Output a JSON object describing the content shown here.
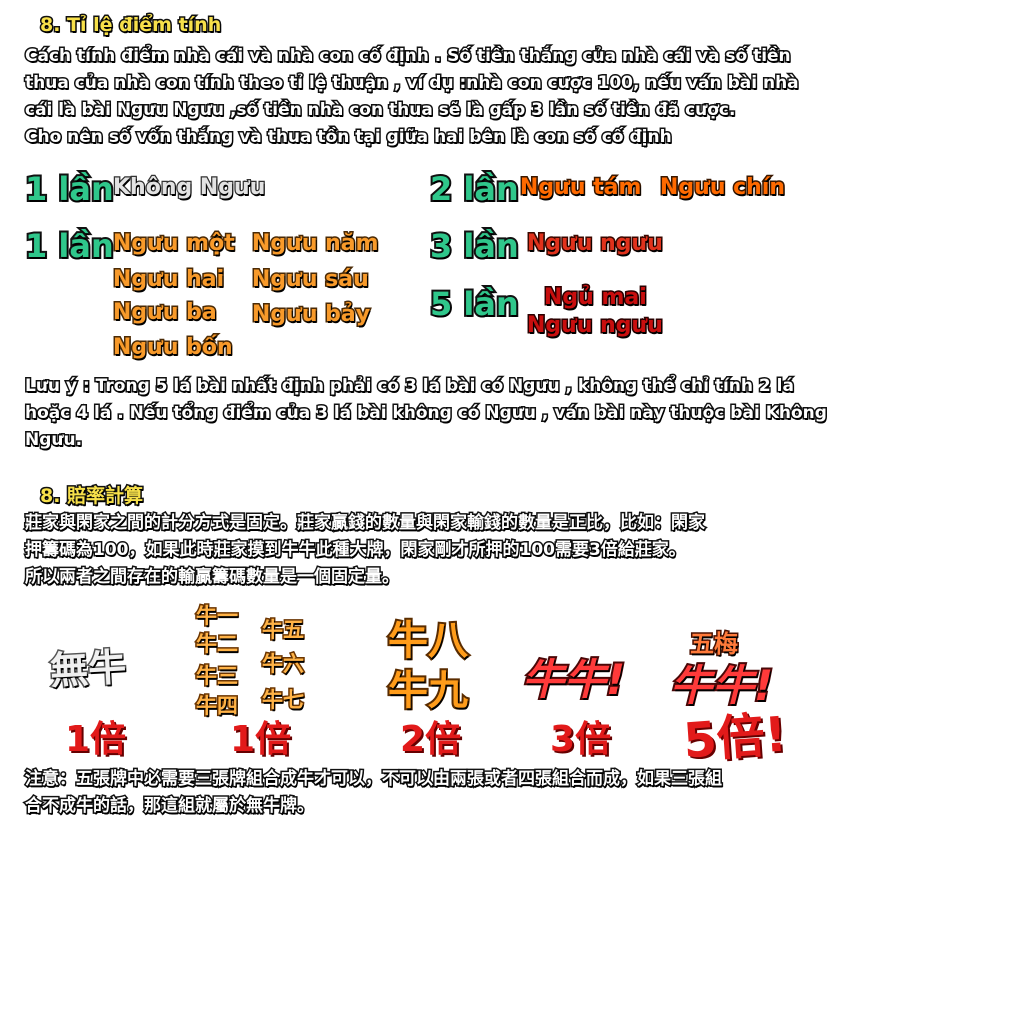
{
  "vi": {
    "title": "8. Tỉ lệ điểm tính",
    "para": [
      "Cách tính điểm nhà cái và nhà con cố định . Số tiền thắng của nhà cái và số tiền",
      "thua của nhà con tính theo tỉ lệ thuận  , ví dụ :nhà con cược 100, nếu ván bài nhà",
      "cái là bài Ngưu Ngưu ,số tiền nhà con thua sẽ là gấp 3 lần số tiền đã cược.",
      "Cho nên số vốn thắng và thua tồn tại giữa hai bên là con số cố định"
    ],
    "rows": {
      "r1_mult": "1 lần",
      "r1_item": "Không Ngưu",
      "r2_mult": "2 lần",
      "r2_items": [
        "Ngưu tám",
        "Ngưu chín"
      ],
      "r3_mult": "1 lần",
      "r3_items_a": [
        "Ngưu một",
        "Ngưu hai",
        "Ngưu ba",
        "Ngưu bốn"
      ],
      "r3_items_b": [
        "Ngưu năm",
        "Ngưu sáu",
        "Ngưu bảy"
      ],
      "r4_mult": "3 lần",
      "r4_item": "Ngưu ngưu",
      "r5_mult": "5 lần",
      "r5_items": [
        "Ngủ mai",
        "Ngưu ngưu"
      ]
    },
    "note": [
      "Lưu ý : Trong 5 lá bài nhất định phải có 3 lá bài có Ngưu , không thể chỉ tính 2 lá",
      "hoặc 4 lá . Nếu tổng điểm của 3 lá bài không có Ngưu , ván bài này thuộc bài Không",
      "Ngưu."
    ]
  },
  "zh": {
    "title": "8. 賠率計算",
    "para": [
      "莊家與閑家之間的計分方式是固定。莊家贏錢的數量與閑家輸錢的數量是正比，比如：閑家",
      "押籌碼為100，如果此時莊家摸到牛牛此種大牌，閑家剛才所押的100需要3倍給莊家。",
      "所以兩者之間存在的輸贏籌碼數量是一個固定量。"
    ],
    "cols": [
      {
        "labels": [
          "無牛"
        ],
        "mult": "1倍"
      },
      {
        "labels_a": [
          "牛一",
          "牛二",
          "牛三",
          "牛四"
        ],
        "labels_b": [
          "牛五",
          "牛六",
          "牛七"
        ],
        "mult": "1倍"
      },
      {
        "labels": [
          "牛八",
          "牛九"
        ],
        "mult": "2倍"
      },
      {
        "labels": [
          "牛牛!"
        ],
        "mult": "3倍"
      },
      {
        "top": "五梅",
        "labels": [
          "牛牛!"
        ],
        "mult": "5倍!"
      }
    ],
    "note": [
      "注意：五張牌中必需要三張牌組合成牛才可以，不可以由兩張或者四張組合而成，如果三張組",
      "合不成牛的話，那這組就屬於無牛牌。"
    ]
  },
  "colors": {
    "title": "#f7e04a",
    "green": "#2fc78b",
    "orange": "#f89a2a",
    "red": "#e0321c"
  }
}
